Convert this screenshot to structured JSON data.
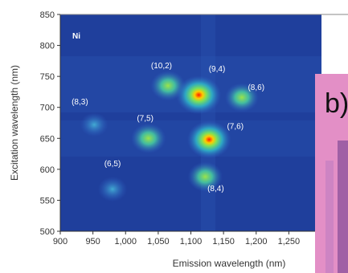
{
  "chart_data": {
    "type": "heatmap",
    "panel_label": "Ni",
    "xlabel": "Emission wavelength (nm)",
    "ylabel": "Excitation wavelength (nm)",
    "xlim": [
      900,
      1300
    ],
    "ylim": [
      500,
      850
    ],
    "xticks": [
      "900",
      "950",
      "1,000",
      "1,050",
      "1,100",
      "1,150",
      "1,200",
      "1,250"
    ],
    "yticks": [
      "500",
      "550",
      "600",
      "650",
      "700",
      "750",
      "800",
      "850"
    ],
    "peaks": [
      {
        "label": "(10,2)",
        "x": 1065,
        "y": 735,
        "intensity": 0.55,
        "label_x": 1055,
        "label_y": 763
      },
      {
        "label": "(9,4)",
        "x": 1112,
        "y": 720,
        "intensity": 1.0,
        "label_x": 1140,
        "label_y": 758
      },
      {
        "label": "(8,6)",
        "x": 1178,
        "y": 716,
        "intensity": 0.5,
        "label_x": 1200,
        "label_y": 728
      },
      {
        "label": "(8,3)",
        "x": 952,
        "y": 672,
        "intensity": 0.25,
        "label_x": 930,
        "label_y": 705
      },
      {
        "label": "(7,5)",
        "x": 1035,
        "y": 650,
        "intensity": 0.55,
        "label_x": 1030,
        "label_y": 678
      },
      {
        "label": "(7,6)",
        "x": 1128,
        "y": 648,
        "intensity": 0.95,
        "label_x": 1168,
        "label_y": 665
      },
      {
        "label": "(6,5)",
        "x": 980,
        "y": 568,
        "intensity": 0.3,
        "label_x": 980,
        "label_y": 605
      },
      {
        "label": "(8,4)",
        "x": 1122,
        "y": 588,
        "intensity": 0.55,
        "label_x": 1138,
        "label_y": 565
      }
    ],
    "inset_label": "b)"
  },
  "colors": {
    "background": "#1f3f9c",
    "inset": "#dd8fc8"
  }
}
